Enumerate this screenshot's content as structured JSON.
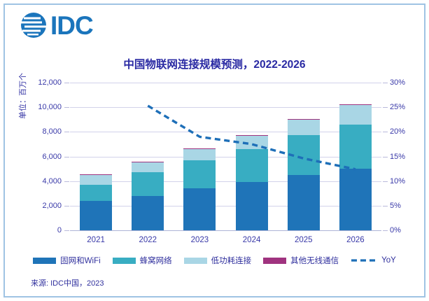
{
  "page": {
    "logo_text": "IDC",
    "source": "来源: IDC中国，2023",
    "colors": {
      "logo_blue": "#1B75BC",
      "title_navy": "#2929A3",
      "frame_border": "#9FC3E3",
      "gridline": "#D2D2EA"
    }
  },
  "chart_data": {
    "type": "bar",
    "subtype": "stacked-bars-with-dashed-line",
    "title": "中国物联网连接规模预测，2022-2026",
    "categories": [
      "2021",
      "2022",
      "2023",
      "2024",
      "2025",
      "2026"
    ],
    "series": [
      {
        "name": "固网和WiFi",
        "color": "#1F74B8",
        "values": [
          2400,
          2800,
          3400,
          3900,
          4500,
          5000
        ]
      },
      {
        "name": "蜂窝网络",
        "color": "#38ADC2",
        "values": [
          1300,
          1900,
          2300,
          2700,
          3250,
          3600
        ]
      },
      {
        "name": "低功耗连接",
        "color": "#A9D6E5",
        "values": [
          780,
          820,
          900,
          1100,
          1220,
          1600
        ]
      },
      {
        "name": "其他无线通信",
        "color": "#A0337F",
        "values": [
          20,
          30,
          30,
          30,
          30,
          40
        ]
      }
    ],
    "totals": [
      4500,
      5550,
      6630,
      7730,
      9000,
      10240
    ],
    "line_series": {
      "name": "YoY",
      "color": "#1E6FB8",
      "style": "dashed",
      "values_pct": [
        null,
        25.3,
        19.0,
        17.5,
        14.6,
        12.4
      ]
    },
    "left_axis": {
      "label": "单位：百万个",
      "ticks": [
        "0",
        "2,000",
        "4,000",
        "6,000",
        "8,000",
        "10,000",
        "12,000"
      ],
      "min": 0,
      "max": 12000
    },
    "right_axis": {
      "ticks": [
        "0%",
        "5%",
        "10%",
        "15%",
        "20%",
        "25%",
        "30%"
      ],
      "min": 0,
      "max": 30
    },
    "legend_position": "bottom",
    "grid": true
  }
}
